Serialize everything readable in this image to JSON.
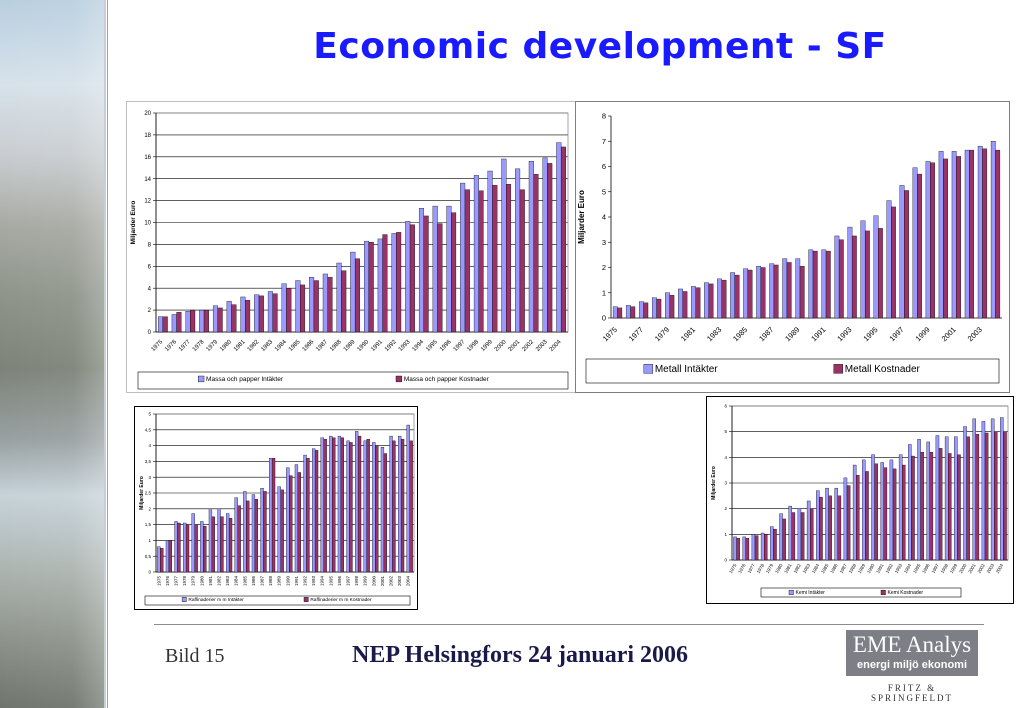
{
  "slide": {
    "title": "Economic development - SF",
    "footer_left": "Bild 15",
    "footer_center": "NEP Helsingfors 24 januari 2006",
    "logo_name": "EME Analys",
    "logo_tagline": "energi miljö ekonomi",
    "logo_sub": "FRITZ & SPRINGFELDT"
  },
  "colors": {
    "title": "#1a1aff",
    "series_a": "#9999ff",
    "series_b": "#993366"
  },
  "chart_data": [
    {
      "id": "massa",
      "type": "bar",
      "title": "",
      "ylabel": "Miljarder Euro",
      "xlabel": "",
      "ylim": [
        0,
        20
      ],
      "yticks": [
        0,
        2,
        4,
        6,
        8,
        10,
        12,
        14,
        16,
        18,
        20
      ],
      "grid": true,
      "legend": "bottom",
      "x_label_every": 1,
      "categories": [
        "1975",
        "1976",
        "1977",
        "1978",
        "1979",
        "1980",
        "1981",
        "1982",
        "1983",
        "1984",
        "1985",
        "1986",
        "1987",
        "1988",
        "1989",
        "1990",
        "1991",
        "1992",
        "1993",
        "1994",
        "1995",
        "1996",
        "1997",
        "1998",
        "1999",
        "2000",
        "2001",
        "2002",
        "2003",
        "2004"
      ],
      "series": [
        {
          "name": "Massa och papper Intäkter",
          "values": [
            1.4,
            1.6,
            1.9,
            2.0,
            2.4,
            2.8,
            3.2,
            3.4,
            3.7,
            4.4,
            4.7,
            5.0,
            5.3,
            6.3,
            7.3,
            8.3,
            8.5,
            9.0,
            10.1,
            11.3,
            11.5,
            11.5,
            13.6,
            14.3,
            14.7,
            15.8,
            14.9,
            15.6,
            15.9,
            17.3
          ]
        },
        {
          "name": "Massa och papper Kostnader",
          "values": [
            1.4,
            1.8,
            2.0,
            2.0,
            2.2,
            2.5,
            2.9,
            3.3,
            3.5,
            4.0,
            4.3,
            4.7,
            5.0,
            5.6,
            6.7,
            8.2,
            8.9,
            9.1,
            9.8,
            10.6,
            9.9,
            10.9,
            13.0,
            12.9,
            13.4,
            13.5,
            13.0,
            14.4,
            15.4,
            16.9
          ]
        }
      ]
    },
    {
      "id": "metall",
      "type": "bar",
      "title": "",
      "ylabel": "Miljarder Euro",
      "xlabel": "",
      "ylim": [
        0,
        8
      ],
      "yticks": [
        0,
        1,
        2,
        3,
        4,
        5,
        6,
        7,
        8
      ],
      "grid": false,
      "legend": "bottom",
      "x_label_every": 2,
      "categories": [
        "1975",
        "1976",
        "1977",
        "1978",
        "1979",
        "1980",
        "1981",
        "1982",
        "1983",
        "1984",
        "1985",
        "1986",
        "1987",
        "1988",
        "1989",
        "1990",
        "1991",
        "1992",
        "1993",
        "1994",
        "1995",
        "1996",
        "1997",
        "1998",
        "1999",
        "2000",
        "2001",
        "2002",
        "2003",
        "2004"
      ],
      "series": [
        {
          "name": "Metall Intäkter",
          "values": [
            0.45,
            0.5,
            0.65,
            0.8,
            1.0,
            1.15,
            1.25,
            1.4,
            1.55,
            1.8,
            1.95,
            2.05,
            2.15,
            2.35,
            2.35,
            2.7,
            2.7,
            3.25,
            3.6,
            3.85,
            4.05,
            4.65,
            5.25,
            5.95,
            6.2,
            6.6,
            6.6,
            6.65,
            6.8,
            7.0
          ]
        },
        {
          "name": "Metall Kostnader",
          "values": [
            0.4,
            0.45,
            0.6,
            0.75,
            0.9,
            1.05,
            1.2,
            1.35,
            1.5,
            1.7,
            1.9,
            2.0,
            2.1,
            2.2,
            2.05,
            2.65,
            2.65,
            3.1,
            3.25,
            3.45,
            3.55,
            4.4,
            5.05,
            5.7,
            6.15,
            6.3,
            6.4,
            6.65,
            6.7,
            6.65
          ]
        }
      ]
    },
    {
      "id": "raffinaderier",
      "type": "bar",
      "title": "",
      "ylabel": "Miljarder Euro",
      "xlabel": "",
      "ylim": [
        0,
        5
      ],
      "yticks": [
        0,
        0.5,
        1,
        1.5,
        2,
        2.5,
        3,
        3.5,
        4,
        4.5,
        5
      ],
      "grid": true,
      "legend": "bottom",
      "x_label_every": 1,
      "categories": [
        "1975",
        "1976",
        "1977",
        "1978",
        "1979",
        "1980",
        "1981",
        "1982",
        "1983",
        "1984",
        "1985",
        "1986",
        "1987",
        "1988",
        "1989",
        "1990",
        "1991",
        "1992",
        "1993",
        "1994",
        "1995",
        "1996",
        "1997",
        "1998",
        "1999",
        "2000",
        "2001",
        "2002",
        "2003",
        "2004"
      ],
      "series": [
        {
          "name": "Raffinaderier m m Intäkter",
          "values": [
            0.8,
            1.0,
            1.6,
            1.55,
            1.85,
            1.6,
            2.0,
            2.0,
            1.85,
            2.35,
            2.55,
            2.45,
            2.65,
            3.6,
            2.7,
            3.3,
            3.4,
            3.7,
            3.9,
            4.25,
            4.3,
            4.3,
            4.15,
            4.45,
            4.15,
            4.1,
            3.95,
            4.3,
            4.3,
            4.65
          ]
        },
        {
          "name": "Raffinaderier m m Kostnader",
          "values": [
            0.75,
            1.0,
            1.55,
            1.5,
            1.5,
            1.45,
            1.75,
            1.75,
            1.7,
            2.1,
            2.25,
            2.3,
            2.55,
            3.6,
            2.6,
            3.05,
            3.15,
            3.6,
            3.85,
            4.2,
            4.25,
            4.25,
            4.1,
            4.3,
            4.2,
            4.0,
            3.75,
            4.15,
            4.2,
            4.15
          ]
        }
      ]
    },
    {
      "id": "kemi",
      "type": "bar",
      "title": "",
      "ylabel": "Miljarder Euro",
      "xlabel": "",
      "ylim": [
        0,
        6
      ],
      "yticks": [
        0,
        1,
        2,
        3,
        4,
        5,
        6
      ],
      "grid": true,
      "legend": "bottom",
      "x_label_every": 1,
      "categories": [
        "1975",
        "1976",
        "1977",
        "1978",
        "1979",
        "1980",
        "1981",
        "1982",
        "1983",
        "1984",
        "1985",
        "1986",
        "1987",
        "1988",
        "1989",
        "1990",
        "1991",
        "1992",
        "1993",
        "1994",
        "1995",
        "1996",
        "1997",
        "1998",
        "1999",
        "2000",
        "2001",
        "2002",
        "2003",
        "2004"
      ],
      "series": [
        {
          "name": "Kemi Intäkter",
          "values": [
            0.9,
            0.9,
            1.0,
            1.05,
            1.3,
            1.8,
            2.1,
            2.0,
            2.3,
            2.7,
            2.8,
            2.8,
            3.2,
            3.7,
            3.9,
            4.1,
            3.8,
            3.9,
            4.1,
            4.5,
            4.7,
            4.6,
            4.85,
            4.8,
            4.8,
            5.2,
            5.5,
            5.4,
            5.5,
            5.55
          ]
        },
        {
          "name": "Kemi Kostnader",
          "values": [
            0.85,
            0.85,
            0.95,
            1.0,
            1.2,
            1.6,
            1.85,
            1.85,
            2.0,
            2.45,
            2.5,
            2.5,
            2.9,
            3.3,
            3.45,
            3.75,
            3.6,
            3.55,
            3.7,
            4.05,
            4.2,
            4.2,
            4.35,
            4.15,
            4.1,
            4.8,
            4.9,
            4.95,
            5.0,
            5.0
          ]
        }
      ]
    }
  ]
}
